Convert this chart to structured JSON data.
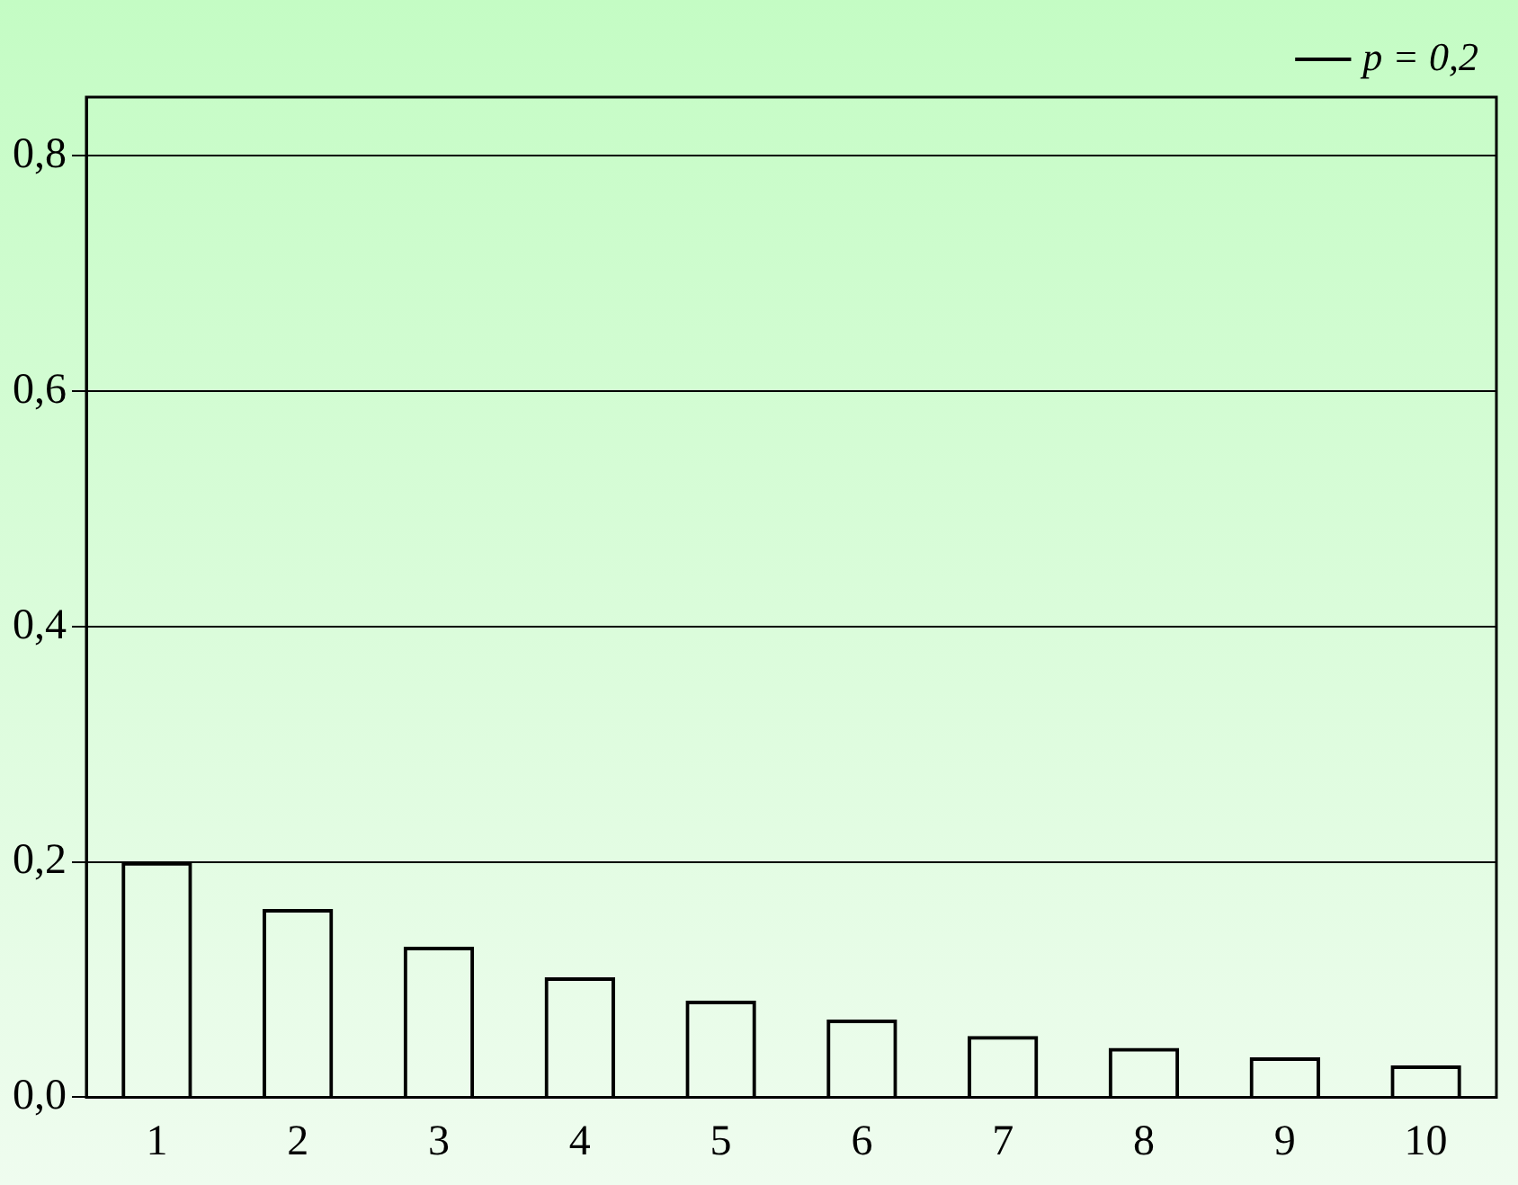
{
  "chart_data": {
    "type": "bar",
    "categories": [
      "1",
      "2",
      "3",
      "4",
      "5",
      "6",
      "7",
      "8",
      "9",
      "10"
    ],
    "series": [
      {
        "name": "p = 0,2",
        "color": "#000000",
        "values": [
          0.2,
          0.16,
          0.128,
          0.102,
          0.082,
          0.066,
          0.052,
          0.042,
          0.034,
          0.027
        ]
      }
    ],
    "ylim": [
      0,
      0.85
    ],
    "yticks": [
      {
        "value": 0,
        "label": "0,0"
      },
      {
        "value": 0.2,
        "label": "0,2"
      },
      {
        "value": 0.4,
        "label": "0,4"
      },
      {
        "value": 0.6,
        "label": "0,6"
      },
      {
        "value": 0.8,
        "label": "0,8"
      }
    ],
    "grid": "y",
    "legend": "top right"
  }
}
